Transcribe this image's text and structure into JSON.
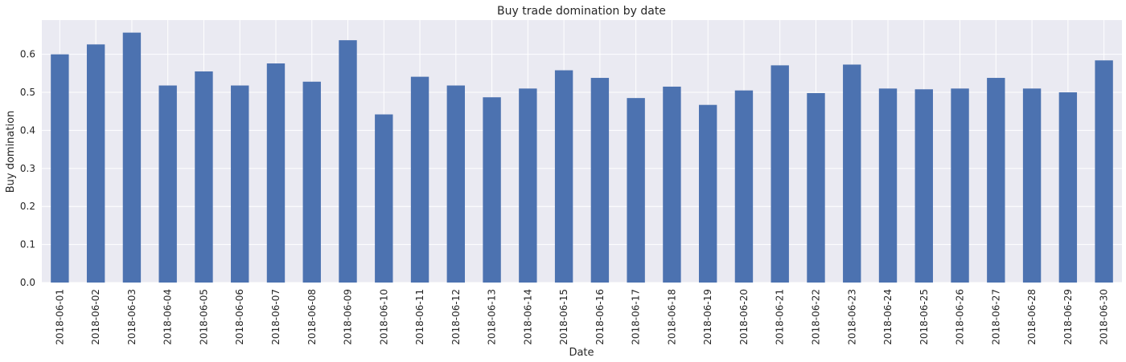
{
  "chart_data": {
    "type": "bar",
    "title": "Buy trade domination by date",
    "xlabel": "Date",
    "ylabel": "Buy domination",
    "ylim": [
      0,
      0.69
    ],
    "yticks": [
      "0.0",
      "0.1",
      "0.2",
      "0.3",
      "0.4",
      "0.5",
      "0.6"
    ],
    "grid": true,
    "legend": "none",
    "colors": {
      "bar": "#4c72b0",
      "plot_background": "#eaeaf2",
      "grid": "#ffffff"
    },
    "categories": [
      "2018-06-01",
      "2018-06-02",
      "2018-06-03",
      "2018-06-04",
      "2018-06-05",
      "2018-06-06",
      "2018-06-07",
      "2018-06-08",
      "2018-06-09",
      "2018-06-10",
      "2018-06-11",
      "2018-06-12",
      "2018-06-13",
      "2018-06-14",
      "2018-06-15",
      "2018-06-16",
      "2018-06-17",
      "2018-06-18",
      "2018-06-19",
      "2018-06-20",
      "2018-06-21",
      "2018-06-22",
      "2018-06-23",
      "2018-06-24",
      "2018-06-25",
      "2018-06-26",
      "2018-06-27",
      "2018-06-28",
      "2018-06-29",
      "2018-06-30"
    ],
    "values": [
      0.6,
      0.626,
      0.657,
      0.518,
      0.555,
      0.518,
      0.576,
      0.528,
      0.637,
      0.442,
      0.541,
      0.518,
      0.487,
      0.51,
      0.558,
      0.538,
      0.485,
      0.515,
      0.467,
      0.505,
      0.571,
      0.498,
      0.573,
      0.51,
      0.508,
      0.51,
      0.538,
      0.51,
      0.5,
      0.584
    ]
  }
}
